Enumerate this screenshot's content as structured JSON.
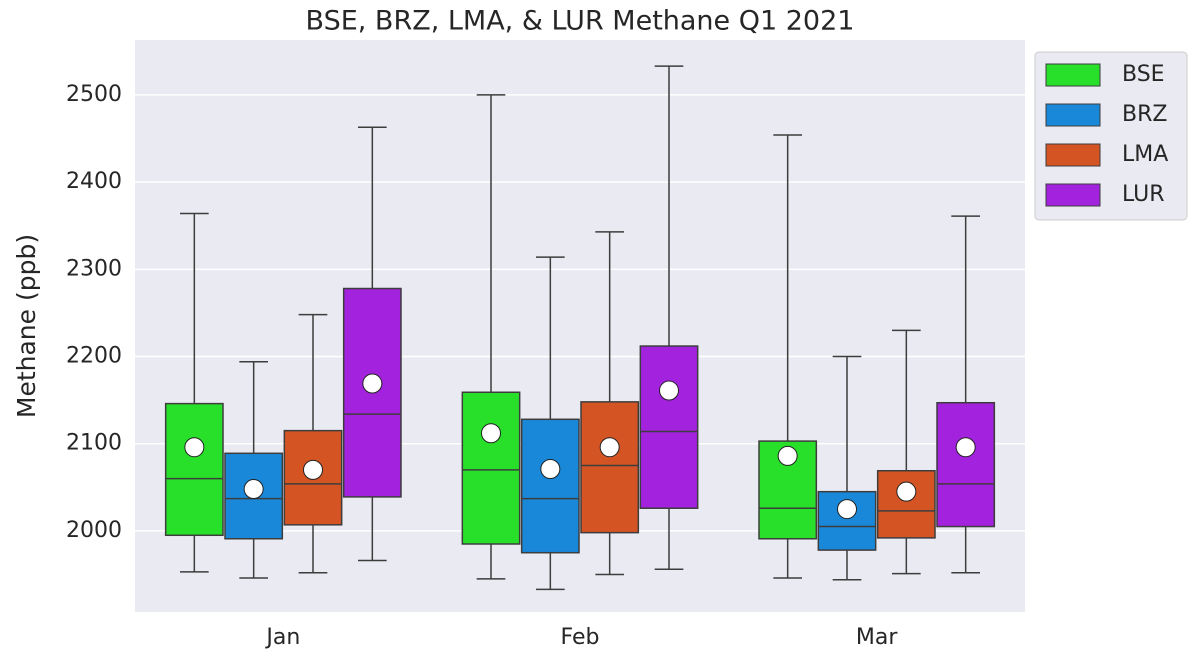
{
  "chart_data": {
    "type": "box",
    "title": "BSE, BRZ, LMA, & LUR Methane Q1 2021",
    "y_label": "Methane (ppb)",
    "categories": [
      "Jan",
      "Feb",
      "Mar"
    ],
    "ylim": [
      1907,
      2563
    ],
    "yticks": [
      2000,
      2100,
      2200,
      2300,
      2400,
      2500
    ],
    "grid": true,
    "legend": "outside-upper-right",
    "series": [
      {
        "name": "BSE",
        "color": "#28e02a",
        "whislo": [
          1953,
          1945,
          1946
        ],
        "q1": [
          1995,
          1985,
          1991
        ],
        "median": [
          2060,
          2070,
          2026
        ],
        "q3": [
          2146,
          2159,
          2103
        ],
        "whishi": [
          2364,
          2500,
          2454
        ],
        "mean": [
          2096,
          2112,
          2086
        ]
      },
      {
        "name": "BRZ",
        "color": "#1a88d8",
        "whislo": [
          1946,
          1933,
          1944
        ],
        "q1": [
          1991,
          1975,
          1978
        ],
        "median": [
          2037,
          2037,
          2005
        ],
        "q3": [
          2089,
          2128,
          2045
        ],
        "whishi": [
          2194,
          2314,
          2200
        ],
        "mean": [
          2048,
          2071,
          2025
        ]
      },
      {
        "name": "LMA",
        "color": "#d55424",
        "whislo": [
          1952,
          1950,
          1951
        ],
        "q1": [
          2007,
          1998,
          1992
        ],
        "median": [
          2054,
          2075,
          2023
        ],
        "q3": [
          2115,
          2148,
          2069
        ],
        "whishi": [
          2248,
          2343,
          2230
        ],
        "mean": [
          2070,
          2096,
          2045
        ]
      },
      {
        "name": "LUR",
        "color": "#a322dd",
        "whislo": [
          1966,
          1956,
          1952
        ],
        "q1": [
          2039,
          2026,
          2005
        ],
        "median": [
          2134,
          2114,
          2054
        ],
        "q3": [
          2278,
          2212,
          2147
        ],
        "whishi": [
          2463,
          2533,
          2361
        ],
        "mean": [
          2169,
          2161,
          2096
        ]
      }
    ]
  }
}
